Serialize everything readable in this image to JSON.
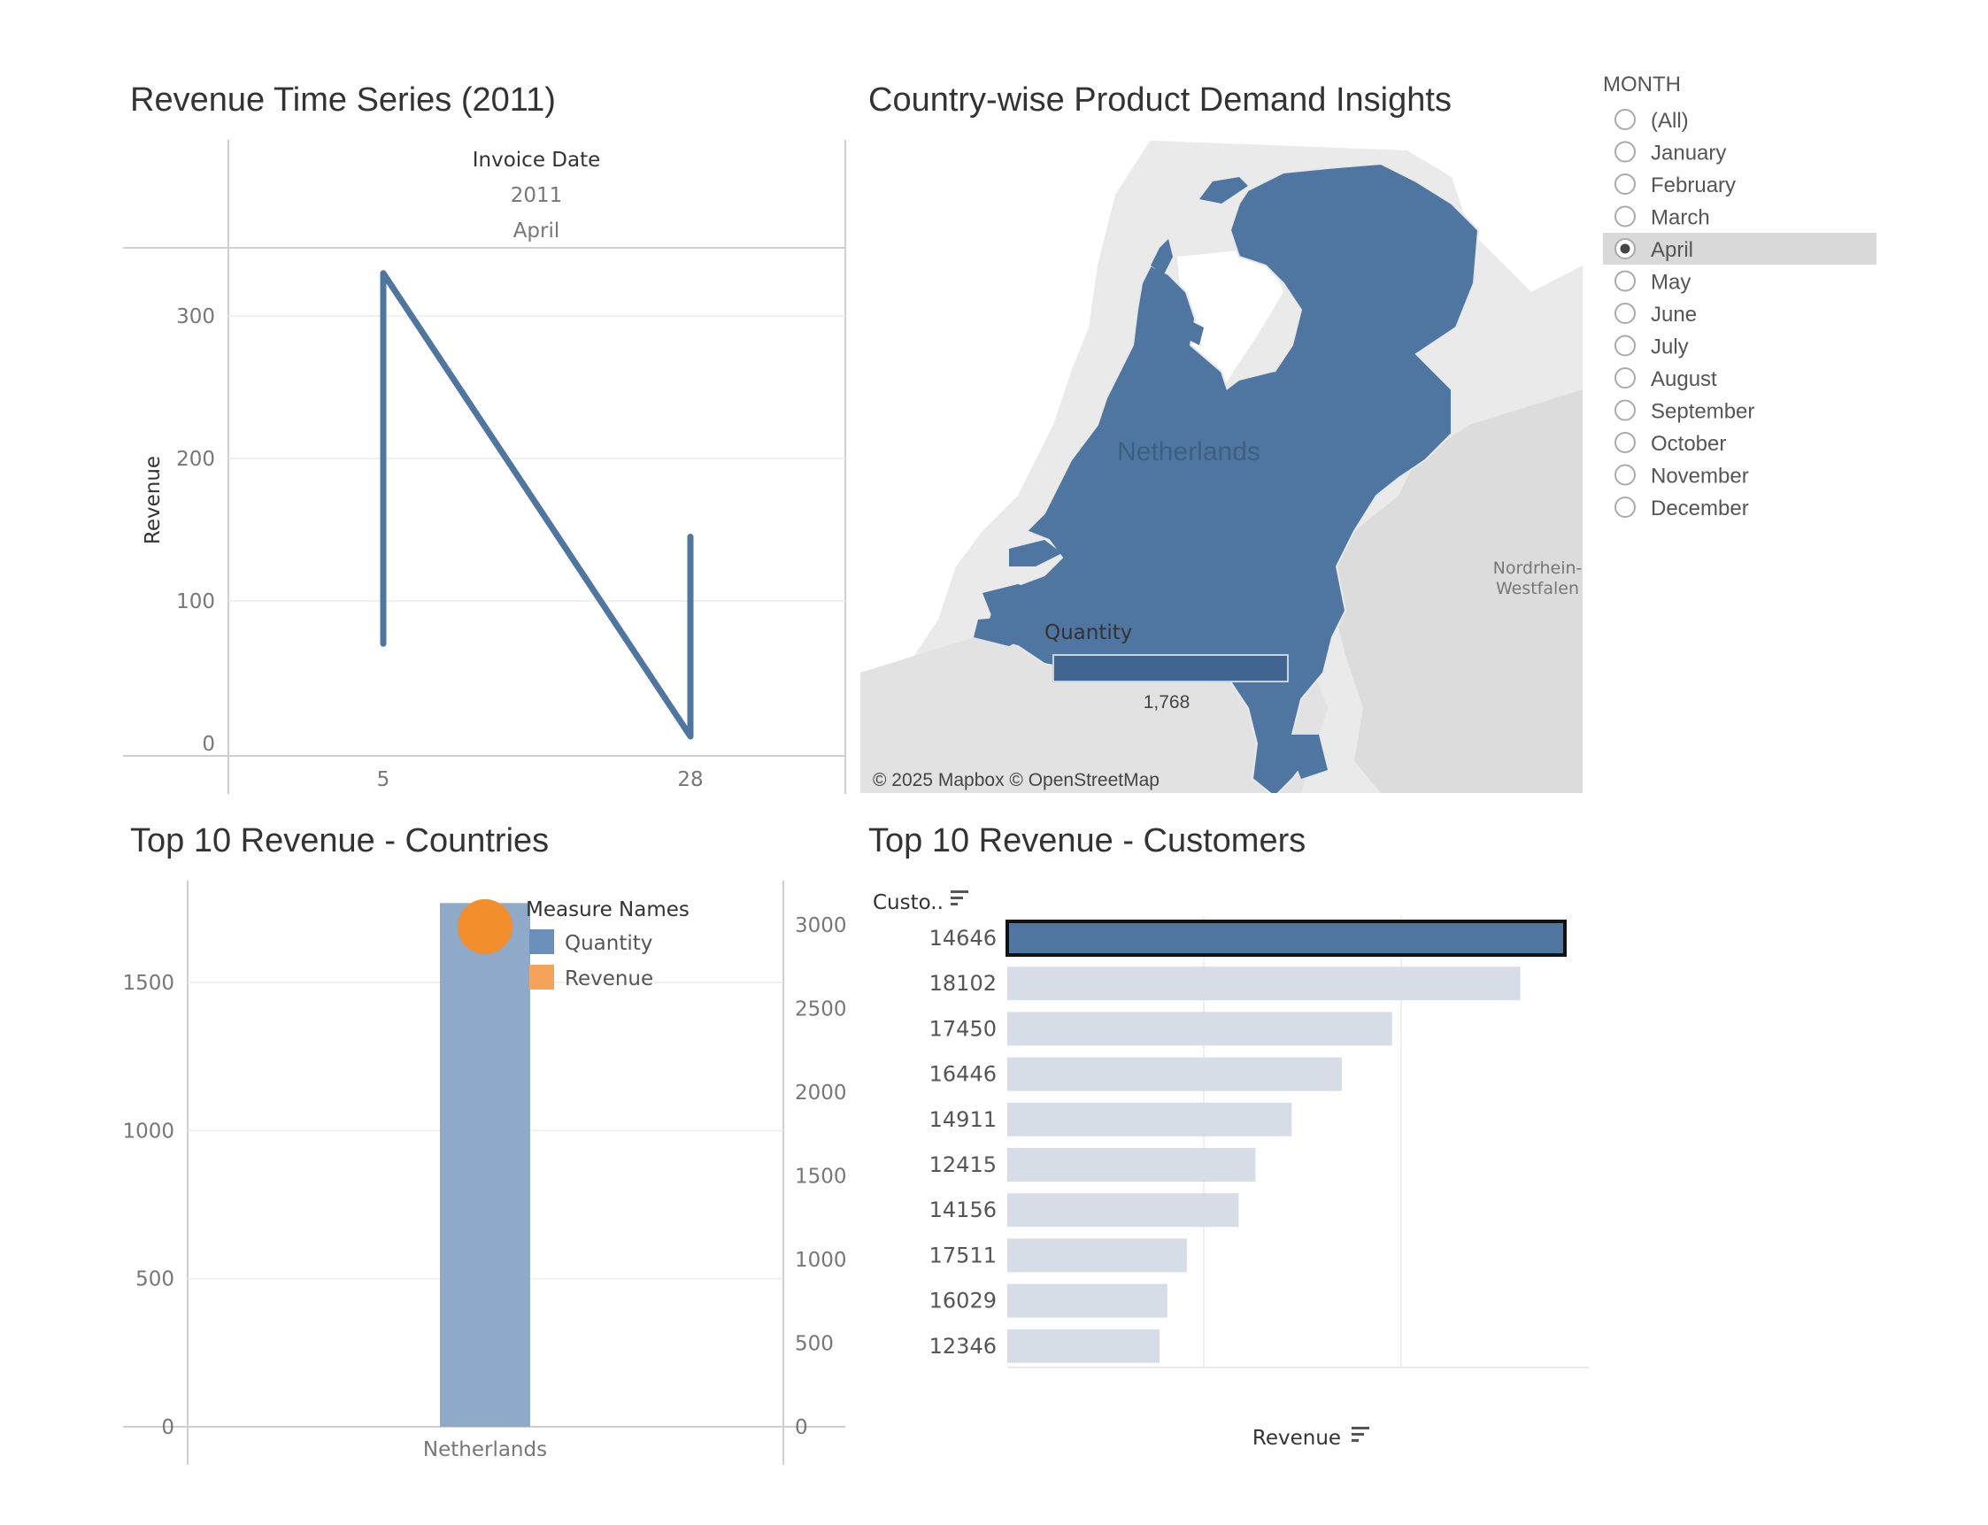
{
  "time_series": {
    "title": "Revenue Time Series (2011)",
    "header_title": "Invoice Date",
    "header_year": "2011",
    "header_month": "April",
    "ylabel": "Revenue"
  },
  "map": {
    "title": "Country-wise Product Demand Insights",
    "country_label": "Netherlands",
    "region_label_1": "Nordrhein-",
    "region_label_2": "Westfalen",
    "legend_title": "Quantity",
    "legend_value": "1,768",
    "credit": "© 2025 Mapbox © OpenStreetMap",
    "colors": {
      "country": "#4e76a0",
      "land": "#eaeaea",
      "water": "#ffffff"
    }
  },
  "countries": {
    "title": "Top 10 Revenue - Countries",
    "legend_title": "Measure Names"
  },
  "customers": {
    "title": "Top 10 Revenue - Customers",
    "row_header": "Custo..",
    "xlabel": "Revenue"
  },
  "filter": {
    "title": "MONTH",
    "options": [
      "(All)",
      "January",
      "February",
      "March",
      "April",
      "May",
      "June",
      "July",
      "August",
      "September",
      "October",
      "November",
      "December"
    ],
    "selected": "April"
  },
  "chart_data": [
    {
      "type": "line",
      "title": "Revenue Time Series (2011)",
      "xlabel": "",
      "ylabel": "Revenue",
      "x_ticks": [
        "5",
        "28"
      ],
      "y_ticks": [
        0,
        100,
        200,
        300
      ],
      "ylim": [
        0,
        345
      ],
      "series": [
        {
          "points": [
            [
              5,
              70
            ],
            [
              5,
              330
            ],
            [
              28,
              5
            ],
            [
              28,
              145
            ]
          ]
        }
      ],
      "color": "#4e76a0"
    },
    {
      "type": "bar",
      "title": "Top 10 Revenue - Countries",
      "categories": [
        "Netherlands"
      ],
      "series": [
        {
          "name": "Quantity",
          "values": [
            1768
          ],
          "axis": "left",
          "color": "#8fa9c8",
          "legend_color": "#6a8fb8"
        },
        {
          "name": "Revenue",
          "values": [
            2990
          ],
          "axis": "right",
          "color": "#f28e2b",
          "legend_color": "#f5a35a"
        }
      ],
      "y_left_ticks": [
        0,
        500,
        1000,
        1500
      ],
      "ylim_left": [
        0,
        1850
      ],
      "y_right_ticks": [
        0,
        500,
        1000,
        1500,
        2000,
        2500,
        3000
      ],
      "ylim_right": [
        0,
        3300
      ],
      "legend": "top-right"
    },
    {
      "type": "bar",
      "orientation": "horizontal",
      "title": "Top 10 Revenue - Customers",
      "xlabel": "Revenue",
      "categories": [
        "14646",
        "18102",
        "17450",
        "16446",
        "14911",
        "12415",
        "14156",
        "17511",
        "16029",
        "12346"
      ],
      "values": [
        1000,
        920,
        690,
        600,
        510,
        445,
        415,
        322,
        287,
        273
      ],
      "highlighted": "14646",
      "colors": {
        "highlight": "#4e76a0",
        "other": "#d6dde7"
      }
    }
  ]
}
